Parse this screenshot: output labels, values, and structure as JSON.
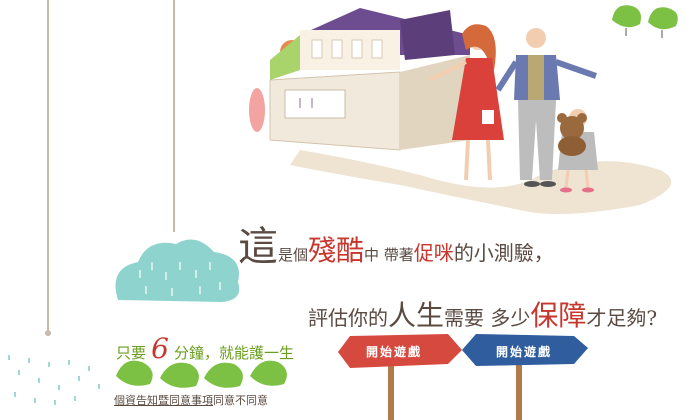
{
  "headline": {
    "line1": {
      "big_char": "這",
      "part_a": "是個",
      "red_a": "殘酷",
      "part_b": "中 帶著",
      "red_b": "促咪",
      "part_c": "的小測驗，"
    },
    "line2": {
      "part_a": "評估你的",
      "big_a": "人生",
      "part_b": "需要  多少",
      "red_a": "保障",
      "part_c": "才足夠?"
    }
  },
  "time_line": {
    "prefix": "只要",
    "number": "6",
    "suffix": "分鐘，就能護一生"
  },
  "buttons": {
    "start_red": "開始遊戲",
    "start_blue": "開始遊戲"
  },
  "consent": {
    "privacy_link": "個資告知暨同意事項",
    "agree": "同意",
    "disagree": "不同意"
  },
  "colors": {
    "accent_red": "#c8372d",
    "accent_blue": "#2f5d9e",
    "accent_green": "#6a9e1e",
    "text_brown": "#5a4a42"
  }
}
